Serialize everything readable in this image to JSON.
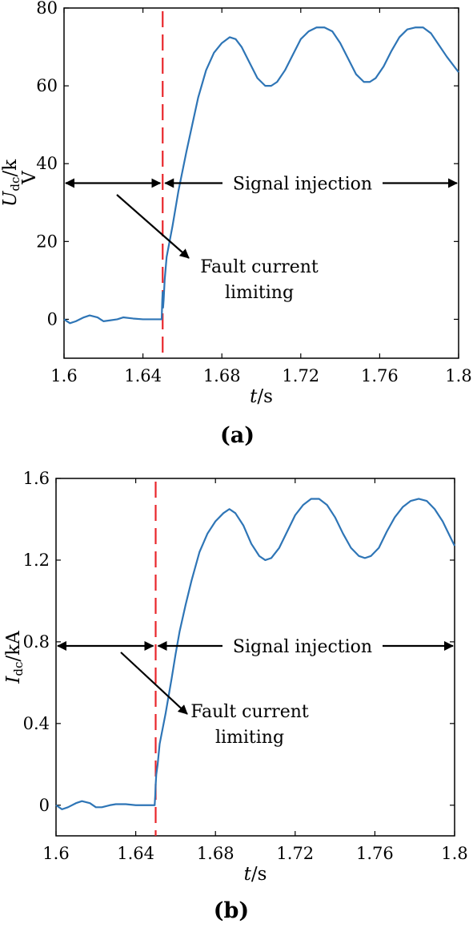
{
  "chart_data": [
    {
      "type": "line",
      "panel_label": "(a)",
      "xlabel": {
        "italic": "t",
        "rest": "/s"
      },
      "ylabel": {
        "main": "U",
        "sub": "dc",
        "rest": "/k",
        "second_line": "V"
      },
      "xlim": [
        1.6,
        1.8
      ],
      "ylim": [
        -10,
        80
      ],
      "xticks": [
        1.6,
        1.64,
        1.68,
        1.72,
        1.76,
        1.8
      ],
      "xtick_labels": [
        "1.6",
        "1.64",
        "1.68",
        "1.72",
        "1.76",
        "1.8"
      ],
      "yticks": [
        0,
        20,
        40,
        60,
        80
      ],
      "ytick_labels": [
        "0",
        "20",
        "40",
        "60",
        "80"
      ],
      "grid": false,
      "fault_time": 1.65,
      "arrow_level": 35,
      "annotations": {
        "signal_injection": "Signal injection",
        "fault_current_line1": "Fault current",
        "fault_current_line2": "limiting"
      },
      "series": [
        {
          "color": "#2e75b6",
          "x": [
            1.6,
            1.603,
            1.606,
            1.61,
            1.613,
            1.617,
            1.62,
            1.623,
            1.627,
            1.63,
            1.635,
            1.64,
            1.645,
            1.6495,
            1.6498,
            1.65,
            1.6502,
            1.6505,
            1.651,
            1.652,
            1.655,
            1.658,
            1.66,
            1.662,
            1.665,
            1.668,
            1.672,
            1.676,
            1.68,
            1.684,
            1.687,
            1.69,
            1.694,
            1.698,
            1.702,
            1.705,
            1.708,
            1.712,
            1.716,
            1.72,
            1.724,
            1.728,
            1.732,
            1.736,
            1.74,
            1.744,
            1.748,
            1.752,
            1.755,
            1.758,
            1.762,
            1.766,
            1.77,
            1.774,
            1.778,
            1.782,
            1.786,
            1.79,
            1.794,
            1.8
          ],
          "y": [
            0,
            -1,
            -0.5,
            0.5,
            1,
            0.5,
            -0.5,
            -0.3,
            0,
            0.5,
            0.2,
            0,
            0,
            0,
            5,
            7,
            3,
            5,
            10,
            16,
            24,
            33,
            38,
            43,
            50,
            57,
            64,
            68.5,
            71,
            72.5,
            72,
            70,
            66,
            62,
            60,
            60,
            61,
            64,
            68,
            72,
            74,
            75,
            75,
            74,
            71,
            67,
            63,
            61,
            61,
            62,
            65,
            69,
            72.5,
            74.5,
            75,
            75,
            73.5,
            70.5,
            67.5,
            63.5
          ]
        }
      ]
    },
    {
      "type": "line",
      "panel_label": "(b)",
      "xlabel": {
        "italic": "t",
        "rest": "/s"
      },
      "ylabel": {
        "main": "I",
        "sub": "dc",
        "rest": "/kA",
        "second_line": ""
      },
      "xlim": [
        1.6,
        1.8
      ],
      "ylim": [
        -0.15,
        1.6
      ],
      "xticks": [
        1.6,
        1.64,
        1.68,
        1.72,
        1.76,
        1.8
      ],
      "xtick_labels": [
        "1.6",
        "1.64",
        "1.68",
        "1.72",
        "1.76",
        "1.8"
      ],
      "yticks": [
        0,
        0.4,
        0.8,
        1.2,
        1.6
      ],
      "ytick_labels": [
        "0",
        "0.4",
        "0.8",
        "1.2",
        "1.6"
      ],
      "grid": false,
      "fault_time": 1.65,
      "arrow_level": 0.78,
      "annotations": {
        "signal_injection": "Signal injection",
        "fault_current_line1": "Fault current",
        "fault_current_line2": "limiting"
      },
      "series": [
        {
          "color": "#2e75b6",
          "x": [
            1.6,
            1.603,
            1.606,
            1.61,
            1.613,
            1.617,
            1.62,
            1.623,
            1.627,
            1.63,
            1.635,
            1.64,
            1.645,
            1.6495,
            1.6498,
            1.65,
            1.6503,
            1.651,
            1.652,
            1.655,
            1.658,
            1.66,
            1.662,
            1.665,
            1.668,
            1.672,
            1.676,
            1.68,
            1.684,
            1.687,
            1.69,
            1.694,
            1.698,
            1.702,
            1.705,
            1.708,
            1.712,
            1.716,
            1.72,
            1.724,
            1.728,
            1.732,
            1.736,
            1.74,
            1.744,
            1.748,
            1.752,
            1.755,
            1.758,
            1.762,
            1.766,
            1.77,
            1.774,
            1.778,
            1.782,
            1.786,
            1.79,
            1.794,
            1.8
          ],
          "y": [
            0,
            -0.02,
            -0.01,
            0.01,
            0.02,
            0.01,
            -0.01,
            -0.01,
            0,
            0.005,
            0.005,
            0,
            0,
            0,
            0.05,
            0.1,
            0.15,
            0.2,
            0.3,
            0.45,
            0.62,
            0.74,
            0.85,
            0.98,
            1.1,
            1.24,
            1.33,
            1.39,
            1.43,
            1.45,
            1.43,
            1.37,
            1.28,
            1.22,
            1.2,
            1.21,
            1.26,
            1.34,
            1.42,
            1.47,
            1.5,
            1.5,
            1.47,
            1.41,
            1.33,
            1.26,
            1.22,
            1.21,
            1.22,
            1.26,
            1.34,
            1.41,
            1.46,
            1.49,
            1.5,
            1.49,
            1.45,
            1.39,
            1.27
          ]
        }
      ]
    }
  ]
}
